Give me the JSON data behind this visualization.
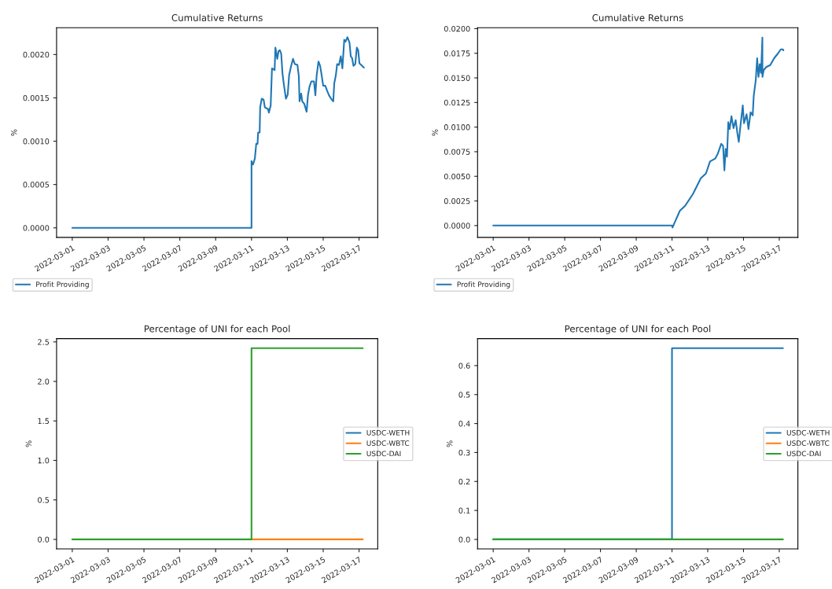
{
  "chart_data": [
    {
      "type": "line",
      "title": "Cumulative Returns",
      "ylabel": "%",
      "legend": "bottom left",
      "grid": false,
      "xlim": [
        "2022-02-28T03:00",
        "2022-03-18T01:00"
      ],
      "xticks": [
        "2022-03-01",
        "2022-03-03",
        "2022-03-05",
        "2022-03-07",
        "2022-03-09",
        "2022-03-11",
        "2022-03-13",
        "2022-03-15",
        "2022-03-17"
      ],
      "ylim": [
        -0.00011,
        0.00231
      ],
      "yticks": [
        {
          "value": 0,
          "label": "0.0000"
        },
        {
          "value": 0.0005,
          "label": "0.0005"
        },
        {
          "value": 0.001,
          "label": "0.0010"
        },
        {
          "value": 0.0015,
          "label": "0.0015"
        },
        {
          "value": 0.002,
          "label": "0.0020"
        }
      ],
      "series": [
        {
          "name": "Profit Providing",
          "color": "#1f77b4",
          "x": [
            "2022-03-01T00:00",
            "2022-03-11T00:00",
            "2022-03-11T00:01",
            "2022-03-11T02:00",
            "2022-03-11T04:30",
            "2022-03-11T06:20",
            "2022-03-11T08:05",
            "2022-03-11T08:50",
            "2022-03-11T10:55",
            "2022-03-11T11:35",
            "2022-03-11T13:40",
            "2022-03-11T16:10",
            "2022-03-11T17:55",
            "2022-03-11T22:10",
            "2022-03-11T23:15",
            "2022-03-12T01:40",
            "2022-03-12T03:25",
            "2022-03-12T06:55",
            "2022-03-12T08:00",
            "2022-03-12T10:30",
            "2022-03-12T12:15",
            "2022-03-12T14:00",
            "2022-03-12T15:45",
            "2022-03-12T17:30",
            "2022-03-12T19:15",
            "2022-03-12T22:05",
            "2022-03-13T00:30",
            "2022-03-13T02:20",
            "2022-03-13T05:05",
            "2022-03-13T07:35",
            "2022-03-13T10:00",
            "2022-03-13T13:30",
            "2022-03-13T15:20",
            "2022-03-13T16:20",
            "2022-03-13T18:30",
            "2022-03-13T19:55",
            "2022-03-13T22:40",
            "2022-03-14T00:05",
            "2022-03-14T01:50",
            "2022-03-14T03:35",
            "2022-03-14T05:40",
            "2022-03-14T08:10",
            "2022-03-14T11:40",
            "2022-03-14T13:30",
            "2022-03-14T15:15",
            "2022-03-14T17:40",
            "2022-03-14T19:50",
            "2022-03-14T21:35",
            "2022-03-15T00:00",
            "2022-03-15T02:50",
            "2022-03-15T05:20",
            "2022-03-15T07:45",
            "2022-03-15T10:35",
            "2022-03-15T13:25",
            "2022-03-15T14:50",
            "2022-03-15T16:55",
            "2022-03-15T18:40",
            "2022-03-15T21:05",
            "2022-03-15T23:35",
            "2022-03-16T01:40",
            "2022-03-16T04:10",
            "2022-03-16T05:55",
            "2022-03-16T08:25",
            "2022-03-16T11:10",
            "2022-03-16T12:55",
            "2022-03-16T14:40",
            "2022-03-16T16:30",
            "2022-03-16T18:55",
            "2022-03-16T21:00",
            "2022-03-16T22:50",
            "2022-03-17T00:30",
            "2022-03-17T04:05",
            "2022-03-17T06:30"
          ],
          "values": [
            0,
            0,
            0.00077,
            0.00073,
            0.0008,
            0.00097,
            0.00097,
            0.0011,
            0.0011,
            0.00139,
            0.00149,
            0.00148,
            0.00139,
            0.00137,
            0.00133,
            0.00141,
            0.00184,
            0.00182,
            0.00208,
            0.00195,
            0.00204,
            0.00205,
            0.00201,
            0.00178,
            0.00166,
            0.00149,
            0.00154,
            0.00176,
            0.00187,
            0.00195,
            0.00189,
            0.00188,
            0.00175,
            0.00146,
            0.00155,
            0.00146,
            0.00143,
            0.00139,
            0.00134,
            0.00153,
            0.00163,
            0.00169,
            0.00169,
            0.00153,
            0.00176,
            0.00192,
            0.00187,
            0.00178,
            0.00164,
            0.00164,
            0.00158,
            0.00153,
            0.00149,
            0.00146,
            0.00167,
            0.00176,
            0.00189,
            0.00188,
            0.00198,
            0.00184,
            0.00217,
            0.00215,
            0.0022,
            0.00214,
            0.00198,
            0.00196,
            0.00187,
            0.00189,
            0.00208,
            0.00205,
            0.0019,
            0.00187,
            0.00185
          ]
        }
      ]
    },
    {
      "type": "line",
      "title": "Cumulative Returns",
      "ylabel": "%",
      "legend": "bottom left",
      "grid": false,
      "xlim": [
        "2022-02-28T03:00",
        "2022-03-18T01:00"
      ],
      "xticks": [
        "2022-03-01",
        "2022-03-03",
        "2022-03-05",
        "2022-03-07",
        "2022-03-09",
        "2022-03-11",
        "2022-03-13",
        "2022-03-15",
        "2022-03-17"
      ],
      "ylim": [
        -0.0012,
        0.0201
      ],
      "yticks": [
        {
          "value": 0,
          "label": "0.0000"
        },
        {
          "value": 0.0025,
          "label": "0.0025"
        },
        {
          "value": 0.005,
          "label": "0.0050"
        },
        {
          "value": 0.0075,
          "label": "0.0075"
        },
        {
          "value": 0.01,
          "label": "0.0100"
        },
        {
          "value": 0.0125,
          "label": "0.0125"
        },
        {
          "value": 0.015,
          "label": "0.0150"
        },
        {
          "value": 0.0175,
          "label": "0.0175"
        },
        {
          "value": 0.02,
          "label": "0.0200"
        }
      ],
      "series": [
        {
          "name": "Profit Providing",
          "color": "#1f77b4",
          "x": [
            "2022-03-01T00:00",
            "2022-03-11T00:00",
            "2022-03-11T00:40",
            "2022-03-11T03:30",
            "2022-03-11T10:35",
            "2022-03-11T17:35",
            "2022-03-12T04:05",
            "2022-03-12T14:40",
            "2022-03-12T21:40",
            "2022-03-13T03:00",
            "2022-03-13T10:00",
            "2022-03-13T13:30",
            "2022-03-13T18:05",
            "2022-03-13T20:35",
            "2022-03-13T22:20",
            "2022-03-14T00:05",
            "2022-03-14T01:50",
            "2022-03-14T03:35",
            "2022-03-14T05:25",
            "2022-03-14T07:50",
            "2022-03-14T10:35",
            "2022-03-14T13:30",
            "2022-03-14T15:55",
            "2022-03-14T17:40",
            "2022-03-14T19:25",
            "2022-03-14T23:00",
            "2022-03-15T00:40",
            "2022-03-15T04:10",
            "2022-03-15T06:40",
            "2022-03-15T09:30",
            "2022-03-15T12:20",
            "2022-03-15T13:45",
            "2022-03-15T16:30",
            "2022-03-15T18:20",
            "2022-03-15T20:05",
            "2022-03-15T21:50",
            "2022-03-15T23:35",
            "2022-03-16T01:20",
            "2022-03-16T01:25",
            "2022-03-16T03:05",
            "2022-03-16T06:35",
            "2022-03-16T11:55",
            "2022-03-16T17:10",
            "2022-03-16T22:25",
            "2022-03-17T02:00",
            "2022-03-17T04:50",
            "2022-03-17T05:30"
          ],
          "values": [
            0,
            0,
            -0.0002,
            0.0003,
            0.0015,
            0.002,
            0.0032,
            0.0048,
            0.0053,
            0.0065,
            0.0068,
            0.0073,
            0.0083,
            0.0081,
            0.0056,
            0.0078,
            0.007,
            0.0105,
            0.0098,
            0.0111,
            0.0099,
            0.0107,
            0.0093,
            0.0085,
            0.0098,
            0.0122,
            0.0104,
            0.0113,
            0.0098,
            0.0115,
            0.0112,
            0.0132,
            0.0148,
            0.017,
            0.0151,
            0.0164,
            0.0155,
            0.0191,
            0.0151,
            0.0158,
            0.0161,
            0.0163,
            0.017,
            0.0175,
            0.0179,
            0.0179,
            0.0178
          ]
        }
      ]
    },
    {
      "type": "line",
      "title": "Percentage of UNI for each Pool",
      "ylabel": "%",
      "legend": "right",
      "grid": false,
      "xlim": [
        "2022-02-28T03:00",
        "2022-03-18T01:00"
      ],
      "xticks": [
        "2022-03-01",
        "2022-03-03",
        "2022-03-05",
        "2022-03-07",
        "2022-03-09",
        "2022-03-11",
        "2022-03-13",
        "2022-03-15",
        "2022-03-17"
      ],
      "ylim": [
        -0.121,
        2.541
      ],
      "yticks": [
        {
          "value": 0,
          "label": "0.0"
        },
        {
          "value": 0.5,
          "label": "0.5"
        },
        {
          "value": 1,
          "label": "1.0"
        },
        {
          "value": 1.5,
          "label": "1.5"
        },
        {
          "value": 2,
          "label": "2.0"
        },
        {
          "value": 2.5,
          "label": "2.5"
        }
      ],
      "series": [
        {
          "name": "USDC-WETH",
          "color": "#1f77b4",
          "values": [
            null
          ]
        },
        {
          "name": "USDC-WBTC",
          "color": "#ff7f0e",
          "x": [
            "2022-03-11T00:00",
            "2022-03-17T05:00"
          ],
          "values": [
            0,
            0
          ]
        },
        {
          "name": "USDC-DAI",
          "color": "#2ca02c",
          "x": [
            "2022-03-01T00:00",
            "2022-03-11T00:00",
            "2022-03-11T00:00",
            "2022-03-17T05:00"
          ],
          "values": [
            0,
            0,
            2.42,
            2.42
          ]
        }
      ]
    },
    {
      "type": "line",
      "title": "Percentage of UNI for each Pool",
      "ylabel": "%",
      "legend": "right",
      "grid": false,
      "xlim": [
        "2022-02-28T03:00",
        "2022-03-18T01:00"
      ],
      "xticks": [
        "2022-03-01",
        "2022-03-03",
        "2022-03-05",
        "2022-03-07",
        "2022-03-09",
        "2022-03-11",
        "2022-03-13",
        "2022-03-15",
        "2022-03-17"
      ],
      "ylim": [
        -0.033,
        0.693
      ],
      "yticks": [
        {
          "value": 0,
          "label": "0.0"
        },
        {
          "value": 0.1,
          "label": "0.1"
        },
        {
          "value": 0.2,
          "label": "0.2"
        },
        {
          "value": 0.3,
          "label": "0.3"
        },
        {
          "value": 0.4,
          "label": "0.4"
        },
        {
          "value": 0.5,
          "label": "0.5"
        },
        {
          "value": 0.6,
          "label": "0.6"
        }
      ],
      "series": [
        {
          "name": "USDC-WETH",
          "color": "#1f77b4",
          "x": [
            "2022-03-01T00:00",
            "2022-03-11T00:00",
            "2022-03-11T00:00",
            "2022-03-17T05:00"
          ],
          "values": [
            0,
            0,
            0.66,
            0.66
          ]
        },
        {
          "name": "USDC-WBTC",
          "color": "#ff7f0e",
          "values": [
            null
          ]
        },
        {
          "name": "USDC-DAI",
          "color": "#2ca02c",
          "x": [
            "2022-03-01T00:00",
            "2022-03-11T00:00",
            "2022-03-17T05:00"
          ],
          "values": [
            0,
            0,
            0
          ]
        }
      ]
    }
  ]
}
